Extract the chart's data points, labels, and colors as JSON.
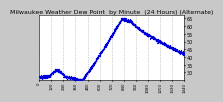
{
  "title": "Milwaukee Weather Dew Point  by Minute  (24 Hours) (Alternate)",
  "title_fontsize": 4.5,
  "dot_color": "#0000dd",
  "dot_size": 0.8,
  "bg_color": "#c8c8c8",
  "plot_bg_color": "#ffffff",
  "grid_color": "#aaaaaa",
  "grid_style": "--",
  "ylim": [
    25,
    67
  ],
  "xlim": [
    0,
    1440
  ],
  "yticks": [
    30,
    35,
    40,
    45,
    50,
    55,
    60,
    65
  ],
  "ytick_labels": [
    "30",
    "35",
    "40",
    "45",
    "50",
    "55",
    "60",
    "65"
  ],
  "ytick_fontsize": 3.5,
  "xtick_fontsize": 2.8,
  "x_labels": [
    "0",
    "120",
    "240",
    "360",
    "480",
    "600",
    "720",
    "840",
    "960",
    "1080",
    "1200",
    "1320",
    "1440"
  ],
  "num_points": 1440
}
